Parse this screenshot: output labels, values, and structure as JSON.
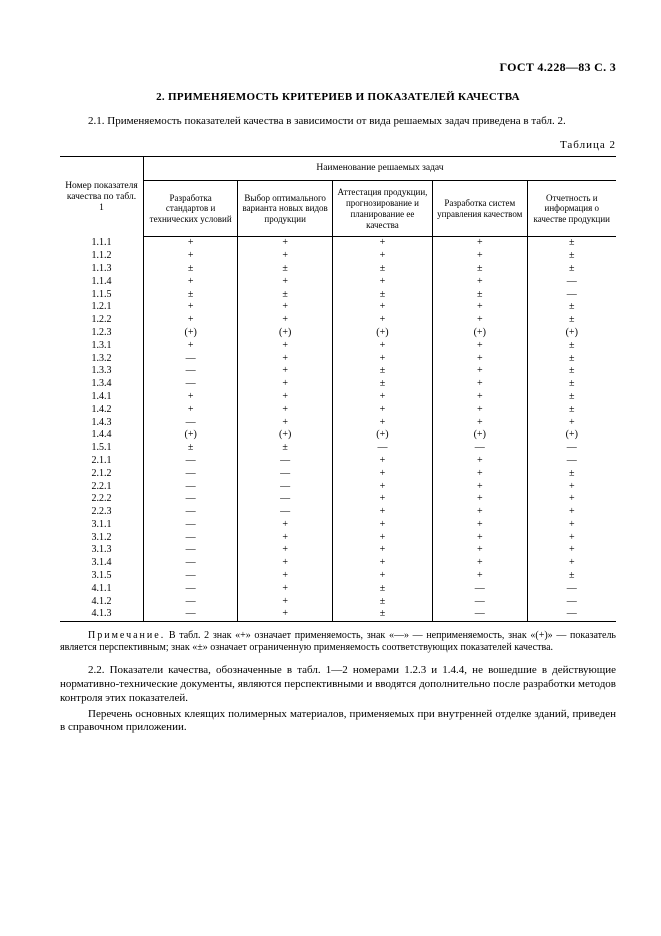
{
  "header": "ГОСТ 4.228—83 С. 3",
  "sectionTitle": "2. ПРИМЕНЯЕМОСТЬ КРИТЕРИЕВ И ПОКАЗАТЕЛЕЙ КАЧЕСТВА",
  "para21": "2.1. Применяемость показателей качества в зависимости от вида решаемых задач приведена в табл. 2.",
  "tableCaption": "Таблица 2",
  "thead": {
    "rowHeader": "Номер показателя качества по табл. 1",
    "group": "Наименование решаемых задач",
    "cols": [
      "Разработка стандартов и технических условий",
      "Выбор оптимального варианта новых видов продукции",
      "Аттестация продукции, прогнозирование и планирование ее качества",
      "Разработка систем управления качеством",
      "Отчетность и информация о качестве продукции"
    ]
  },
  "rows": [
    {
      "id": "1.1.1",
      "v": [
        "+",
        "+",
        "+",
        "+",
        "±"
      ]
    },
    {
      "id": "1.1.2",
      "v": [
        "+",
        "+",
        "+",
        "+",
        "±"
      ]
    },
    {
      "id": "1.1.3",
      "v": [
        "±",
        "±",
        "±",
        "±",
        "±"
      ]
    },
    {
      "id": "1.1.4",
      "v": [
        "+",
        "+",
        "+",
        "+",
        "—"
      ]
    },
    {
      "id": "1.1.5",
      "v": [
        "±",
        "±",
        "±",
        "±",
        "—"
      ]
    },
    {
      "id": "1.2.1",
      "v": [
        "+",
        "+",
        "+",
        "+",
        "±"
      ]
    },
    {
      "id": "1.2.2",
      "v": [
        "+",
        "+",
        "+",
        "+",
        "±"
      ]
    },
    {
      "id": "1.2.3",
      "v": [
        "(+)",
        "(+)",
        "(+)",
        "(+)",
        "(+)"
      ]
    },
    {
      "id": "1.3.1",
      "v": [
        "+",
        "+",
        "+",
        "+",
        "±"
      ]
    },
    {
      "id": "1.3.2",
      "v": [
        "—",
        "+",
        "+",
        "+",
        "±"
      ]
    },
    {
      "id": "1.3.3",
      "v": [
        "—",
        "+",
        "±",
        "+",
        "±"
      ]
    },
    {
      "id": "1.3.4",
      "v": [
        "—",
        "+",
        "±",
        "+",
        "±"
      ]
    },
    {
      "id": "1.4.1",
      "v": [
        "+",
        "+",
        "+",
        "+",
        "±"
      ]
    },
    {
      "id": "1.4.2",
      "v": [
        "+",
        "+",
        "+",
        "+",
        "±"
      ]
    },
    {
      "id": "1.4.3",
      "v": [
        "—",
        "+",
        "+",
        "+",
        "+"
      ]
    },
    {
      "id": "1.4.4",
      "v": [
        "(+)",
        "(+)",
        "(+)",
        "(+)",
        "(+)"
      ]
    },
    {
      "id": "1.5.1",
      "v": [
        "±",
        "±",
        "—",
        "—",
        "—"
      ]
    },
    {
      "id": "2.1.1",
      "v": [
        "—",
        "—",
        "+",
        "+",
        "—"
      ]
    },
    {
      "id": "2.1.2",
      "v": [
        "—",
        "—",
        "+",
        "+",
        "±"
      ]
    },
    {
      "id": "2.2.1",
      "v": [
        "—",
        "—",
        "+",
        "+",
        "+"
      ]
    },
    {
      "id": "2.2.2",
      "v": [
        "—",
        "—",
        "+",
        "+",
        "+"
      ]
    },
    {
      "id": "2.2.3",
      "v": [
        "—",
        "—",
        "+",
        "+",
        "+"
      ]
    },
    {
      "id": "3.1.1",
      "v": [
        "—",
        "+",
        "+",
        "+",
        "+"
      ]
    },
    {
      "id": "3.1.2",
      "v": [
        "—",
        "+",
        "+",
        "+",
        "+"
      ]
    },
    {
      "id": "3.1.3",
      "v": [
        "—",
        "+",
        "+",
        "+",
        "+"
      ]
    },
    {
      "id": "3.1.4",
      "v": [
        "—",
        "+",
        "+",
        "+",
        "+"
      ]
    },
    {
      "id": "3.1.5",
      "v": [
        "—",
        "+",
        "+",
        "+",
        "±"
      ]
    },
    {
      "id": "4.1.1",
      "v": [
        "—",
        "+",
        "±",
        "—",
        "—"
      ]
    },
    {
      "id": "4.1.2",
      "v": [
        "—",
        "+",
        "±",
        "—",
        "—"
      ]
    },
    {
      "id": "4.1.3",
      "v": [
        "—",
        "+",
        "±",
        "—",
        "—"
      ]
    }
  ],
  "noteLabel": "Примечание.",
  "noteText": " В табл. 2 знак «+» означает применяемость, знак «—» — неприменяемость, знак «(+)» — показатель является перспективным; знак «±» означает ограниченную применяемость соответствующих показателей качества.",
  "para22": "2.2. Показатели качества, обозначенные в табл. 1—2 номерами 1.2.3 и 1.4.4, не вошедшие в действующие нормативно-технические документы, являются перспективными и вводятся дополнительно после разработки методов контроля этих показателей.",
  "para23": "Перечень основных клеящих полимерных материалов, применяемых при внутренней отделке зданий, приведен в справочном приложении."
}
